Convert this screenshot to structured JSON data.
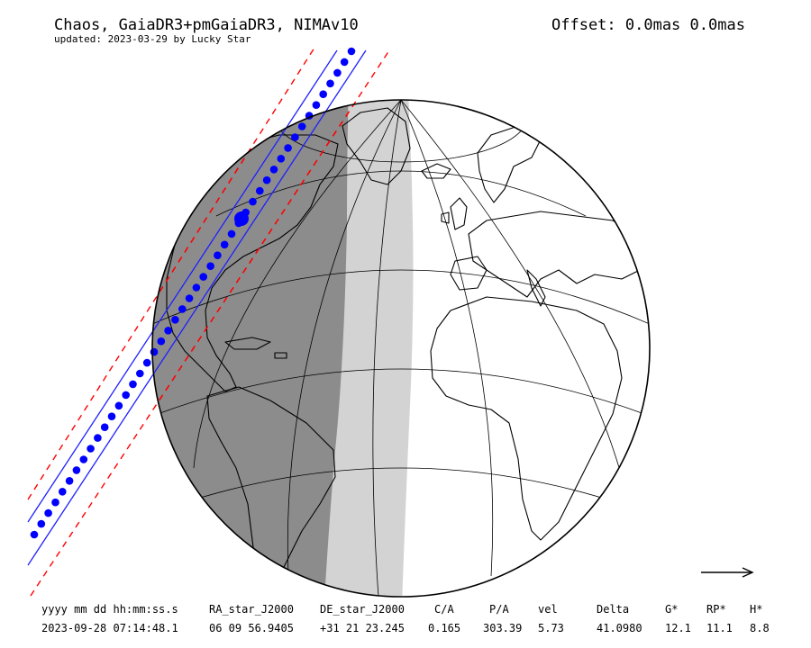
{
  "header": {
    "title": "Chaos, GaiaDR3+pmGaiaDR3, NIMAv10",
    "subtitle": "updated: 2023-03-29 by Lucky Star",
    "offset": "Offset: 0.0mas 0.0mas"
  },
  "colors": {
    "path": "#0000ff",
    "uncertainty": "#ff0000",
    "night": "#8c8c8c",
    "twilight": "#d3d3d3",
    "coast": "#000000"
  },
  "legend_arrow": "right-arrow",
  "table": {
    "headers": [
      "yyyy mm dd hh:mm:ss.s",
      "RA_star_J2000",
      "DE_star_J2000",
      "C/A",
      "P/A",
      "vel",
      "Delta",
      "G*",
      "RP*",
      "H*"
    ],
    "values": [
      "2023-09-28 07:14:48.1",
      "06 09 56.9405",
      "+31 21 23.245",
      "0.165",
      "303.39",
      "5.73",
      "41.0980",
      "12.1",
      "11.1",
      "8.8"
    ]
  }
}
